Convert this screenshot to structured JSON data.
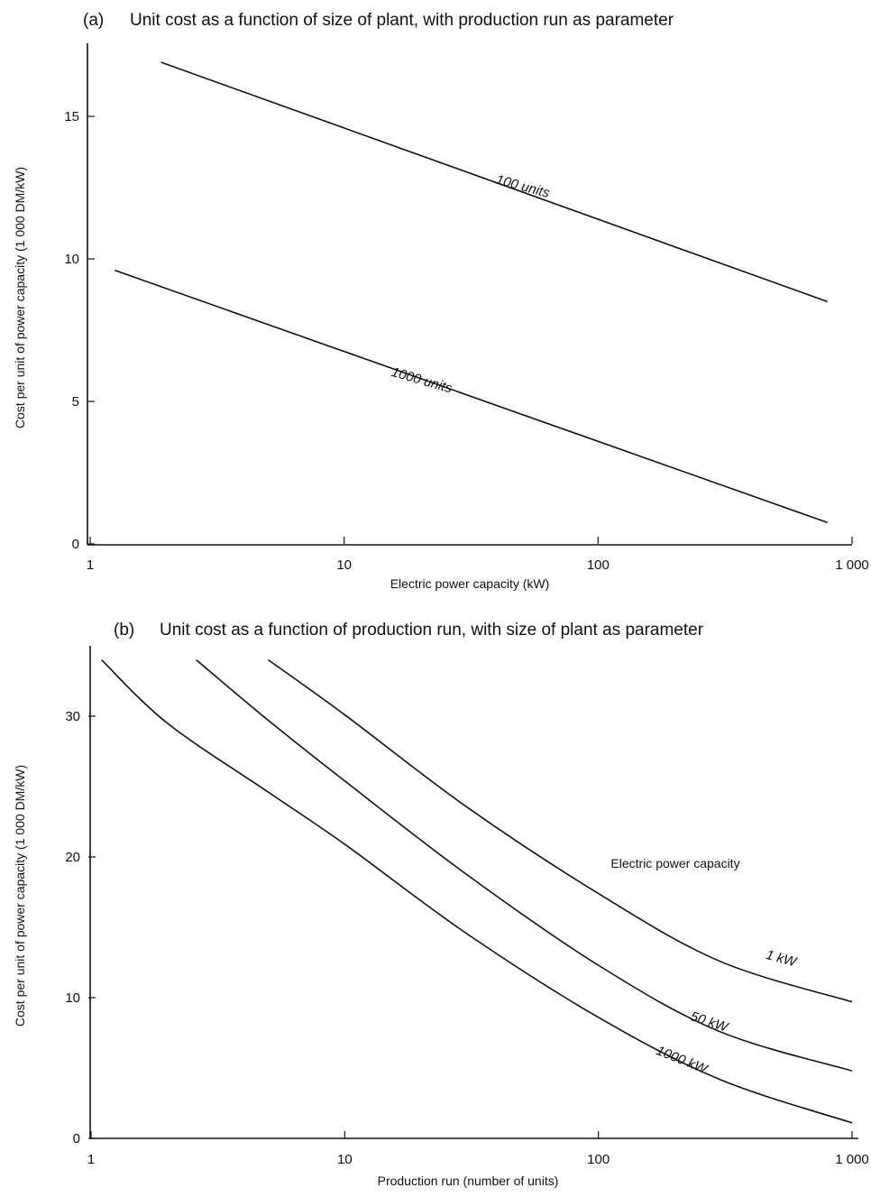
{
  "chart_data": [
    {
      "id": "a",
      "type": "line",
      "panel_label": "(a)",
      "title": "Unit cost as a function of size of plant, with production run as parameter",
      "xlabel": "Electric power capacity (kW)",
      "ylabel": "Cost per unit of power capacity (1 000 DM/kW)",
      "xscale": "log",
      "xlim": [
        1,
        1000
      ],
      "ylim": [
        0,
        17.5
      ],
      "xticks": [
        {
          "value": 1,
          "label": "1"
        },
        {
          "value": 10,
          "label": "10"
        },
        {
          "value": 100,
          "label": "100"
        },
        {
          "value": 1000,
          "label": "1 000"
        }
      ],
      "yticks": [
        {
          "value": 0,
          "label": "0"
        },
        {
          "value": 5,
          "label": "5"
        },
        {
          "value": 10,
          "label": "10"
        },
        {
          "value": 15,
          "label": "15"
        }
      ],
      "grid": false,
      "series": [
        {
          "name": "100 units",
          "x": [
            1.9,
            800
          ],
          "y": [
            16.9,
            8.5
          ],
          "label_at": {
            "x": 50,
            "y": 12.4,
            "angle": 15
          }
        },
        {
          "name": "1000 units",
          "x": [
            1.25,
            800
          ],
          "y": [
            9.6,
            0.75
          ],
          "label_at": {
            "x": 20,
            "y": 5.6,
            "angle": 16
          }
        }
      ]
    },
    {
      "id": "b",
      "type": "line",
      "panel_label": "(b)",
      "title": "Unit cost as a function of production run, with size of plant as parameter",
      "xlabel": "Production run (number of units)",
      "ylabel": "Cost per unit of power capacity (1 000 DM/kW)",
      "xscale": "log",
      "xlim": [
        1,
        1000
      ],
      "ylim": [
        0,
        35
      ],
      "xticks": [
        {
          "value": 1,
          "label": "1"
        },
        {
          "value": 10,
          "label": "10"
        },
        {
          "value": 100,
          "label": "100"
        },
        {
          "value": 1000,
          "label": "1 000"
        }
      ],
      "yticks": [
        {
          "value": 0,
          "label": "0"
        },
        {
          "value": 10,
          "label": "10"
        },
        {
          "value": 20,
          "label": "20"
        },
        {
          "value": 30,
          "label": "30"
        }
      ],
      "grid": false,
      "annotation": "Electric power capacity",
      "series": [
        {
          "name": "1 kW",
          "x": [
            5,
            10,
            30,
            100,
            300,
            1000
          ],
          "y": [
            34,
            30.1,
            23.6,
            17.4,
            12.6,
            9.7
          ],
          "label_at": {
            "x": 520,
            "y": 12.5,
            "angle": 15
          }
        },
        {
          "name": "50 kW",
          "x": [
            2.6,
            5,
            10,
            30,
            100,
            300,
            1000
          ],
          "y": [
            34,
            29.7,
            25.4,
            18.8,
            12.3,
            7.6,
            4.8
          ],
          "label_at": {
            "x": 270,
            "y": 8.0,
            "angle": 18
          }
        },
        {
          "name": "1000 kW",
          "x": [
            1.1,
            2,
            5,
            10,
            30,
            100,
            300,
            1000
          ],
          "y": [
            34,
            29.5,
            24.6,
            20.9,
            14.6,
            8.6,
            4.2,
            1.1
          ],
          "label_at": {
            "x": 210,
            "y": 5.3,
            "angle": 22
          }
        }
      ]
    }
  ]
}
